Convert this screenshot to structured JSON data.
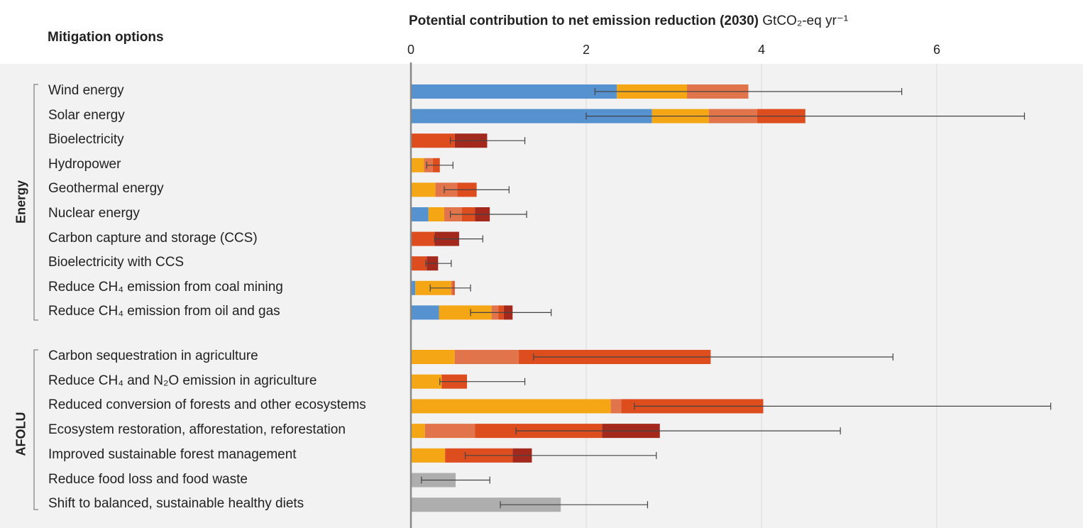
{
  "header": {
    "options_label": "Mitigation options",
    "title_bold": "Potential contribution to net emission reduction (2030)",
    "title_unit": " GtCO₂-eq yr⁻¹"
  },
  "groups": [
    {
      "name": "Energy"
    },
    {
      "name": "AFOLU"
    }
  ],
  "colors": {
    "blue": "#5592cf",
    "yellow": "#f5a614",
    "orange": "#e2744b",
    "red": "#dd4d1e",
    "darkred": "#a3291d",
    "grey": "#aeaeae",
    "axis": "#888888",
    "grid": "#d9d9d9",
    "errorbar": "#444444"
  },
  "chart_data": {
    "type": "bar",
    "orientation": "horizontal",
    "stacked": true,
    "xlim": [
      0,
      7.3
    ],
    "xticks": [
      0,
      2,
      4,
      6
    ],
    "grid": true,
    "rows": [
      {
        "label": "Wind energy",
        "group": "Energy",
        "segments": [
          {
            "color": "blue",
            "value": 2.35
          },
          {
            "color": "yellow",
            "value": 0.8
          },
          {
            "color": "orange",
            "value": 0.7
          }
        ],
        "error": [
          2.1,
          5.6
        ]
      },
      {
        "label": "Solar energy",
        "group": "Energy",
        "segments": [
          {
            "color": "blue",
            "value": 2.75
          },
          {
            "color": "yellow",
            "value": 0.65
          },
          {
            "color": "orange",
            "value": 0.55
          },
          {
            "color": "red",
            "value": 0.55
          }
        ],
        "error": [
          2.0,
          7.0
        ]
      },
      {
        "label": "Bioelectricity",
        "group": "Energy",
        "segments": [
          {
            "color": "red",
            "value": 0.5
          },
          {
            "color": "darkred",
            "value": 0.37
          }
        ],
        "error": [
          0.45,
          1.3
        ]
      },
      {
        "label": "Hydropower",
        "group": "Energy",
        "segments": [
          {
            "color": "yellow",
            "value": 0.15
          },
          {
            "color": "orange",
            "value": 0.1
          },
          {
            "color": "red",
            "value": 0.08
          }
        ],
        "error": [
          0.18,
          0.48
        ]
      },
      {
        "label": "Geothermal energy",
        "group": "Energy",
        "segments": [
          {
            "color": "yellow",
            "value": 0.28
          },
          {
            "color": "orange",
            "value": 0.25
          },
          {
            "color": "red",
            "value": 0.22
          }
        ],
        "error": [
          0.38,
          1.12
        ]
      },
      {
        "label": "Nuclear energy",
        "group": "Energy",
        "segments": [
          {
            "color": "blue",
            "value": 0.2
          },
          {
            "color": "yellow",
            "value": 0.18
          },
          {
            "color": "orange",
            "value": 0.2
          },
          {
            "color": "red",
            "value": 0.15
          },
          {
            "color": "darkred",
            "value": 0.17
          }
        ],
        "error": [
          0.45,
          1.32
        ]
      },
      {
        "label": "Carbon capture and storage (CCS)",
        "group": "Energy",
        "segments": [
          {
            "color": "red",
            "value": 0.27
          },
          {
            "color": "darkred",
            "value": 0.28
          }
        ],
        "error": [
          0.27,
          0.82
        ]
      },
      {
        "label": "Bioelectricity with CCS",
        "group": "Energy",
        "segments": [
          {
            "color": "red",
            "value": 0.18
          },
          {
            "color": "darkred",
            "value": 0.13
          }
        ],
        "error": [
          0.17,
          0.46
        ]
      },
      {
        "label": "Reduce CH₄ emission from coal mining",
        "group": "Energy",
        "segments": [
          {
            "color": "blue",
            "value": 0.05
          },
          {
            "color": "yellow",
            "value": 0.41
          },
          {
            "color": "orange",
            "value": 0.02
          },
          {
            "color": "red",
            "value": 0.02
          }
        ],
        "error": [
          0.22,
          0.68
        ]
      },
      {
        "label": "Reduce CH₄ emission from oil and gas",
        "group": "Energy",
        "segments": [
          {
            "color": "blue",
            "value": 0.32
          },
          {
            "color": "yellow",
            "value": 0.6
          },
          {
            "color": "orange",
            "value": 0.08
          },
          {
            "color": "red",
            "value": 0.06
          },
          {
            "color": "darkred",
            "value": 0.1
          }
        ],
        "error": [
          0.68,
          1.6
        ]
      },
      {
        "label": "Carbon sequestration in agriculture",
        "group": "AFOLU",
        "segments": [
          {
            "color": "yellow",
            "value": 0.5
          },
          {
            "color": "orange",
            "value": 0.73
          },
          {
            "color": "red",
            "value": 2.19
          }
        ],
        "error": [
          1.4,
          5.5
        ]
      },
      {
        "label": "Reduce CH₄ and N₂O emission in agriculture",
        "group": "AFOLU",
        "segments": [
          {
            "color": "yellow",
            "value": 0.35
          },
          {
            "color": "red",
            "value": 0.29
          }
        ],
        "error": [
          0.33,
          1.3
        ]
      },
      {
        "label": "Reduced conversion of forests and other ecosystems",
        "group": "AFOLU",
        "segments": [
          {
            "color": "yellow",
            "value": 2.28
          },
          {
            "color": "orange",
            "value": 0.12
          },
          {
            "color": "red",
            "value": 1.62
          }
        ],
        "error": [
          2.55,
          7.3
        ]
      },
      {
        "label": "Ecosystem restoration, afforestation, reforestation",
        "group": "AFOLU",
        "segments": [
          {
            "color": "yellow",
            "value": 0.16
          },
          {
            "color": "orange",
            "value": 0.57
          },
          {
            "color": "red",
            "value": 1.45
          },
          {
            "color": "darkred",
            "value": 0.66
          }
        ],
        "error": [
          1.2,
          4.9
        ]
      },
      {
        "label": "Improved sustainable forest management",
        "group": "AFOLU",
        "segments": [
          {
            "color": "yellow",
            "value": 0.39
          },
          {
            "color": "red",
            "value": 0.77
          },
          {
            "color": "darkred",
            "value": 0.22
          }
        ],
        "error": [
          0.62,
          2.8
        ]
      },
      {
        "label": "Reduce food loss and food waste",
        "group": "AFOLU",
        "segments": [
          {
            "color": "grey",
            "value": 0.51
          }
        ],
        "error": [
          0.12,
          0.9
        ]
      },
      {
        "label": "Shift to balanced, sustainable healthy diets",
        "group": "AFOLU",
        "segments": [
          {
            "color": "grey",
            "value": 1.71
          }
        ],
        "error": [
          1.02,
          2.7
        ]
      }
    ]
  }
}
